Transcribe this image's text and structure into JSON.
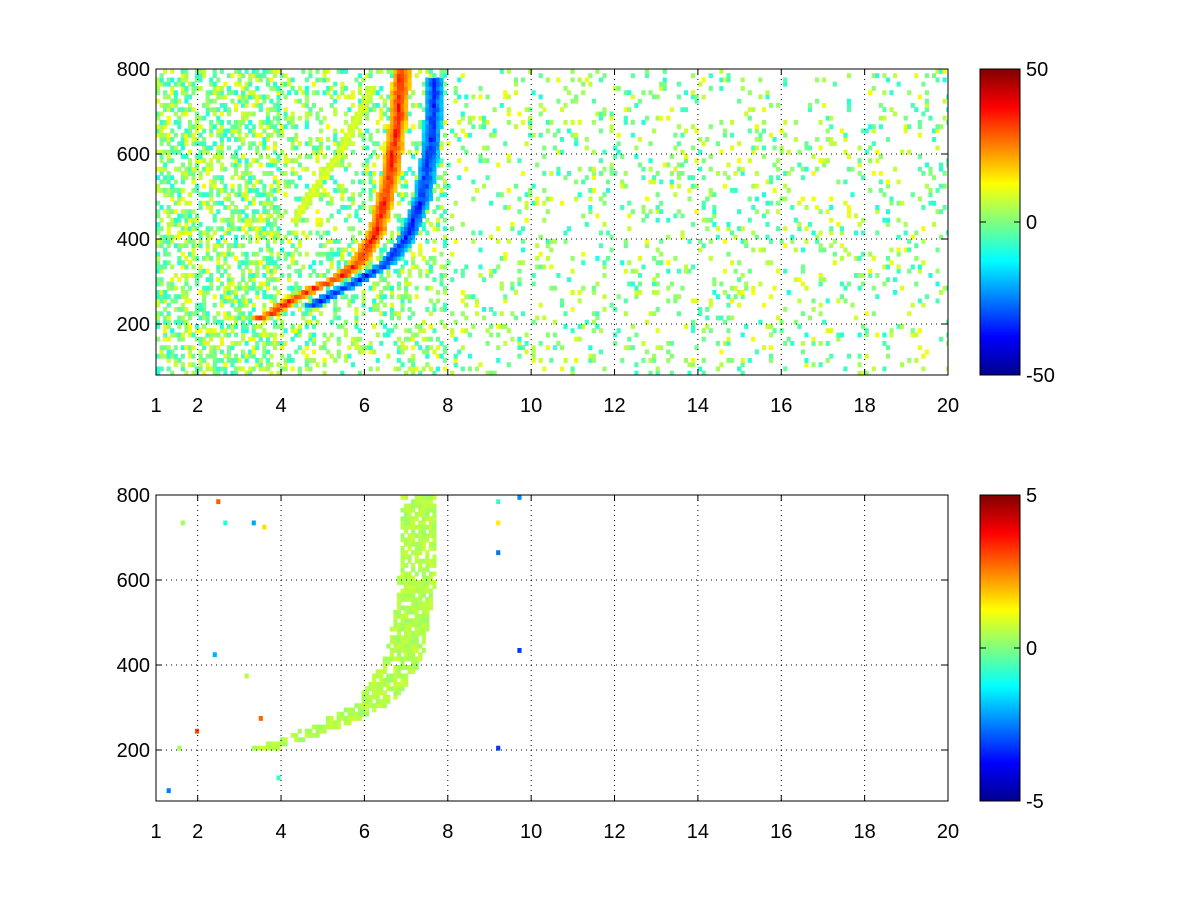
{
  "chart_data": [
    {
      "type": "heatmap",
      "title": "",
      "xlabel": "",
      "ylabel": "",
      "xlim": [
        1,
        20
      ],
      "ylim": [
        80,
        800
      ],
      "xticks": [
        1,
        2,
        4,
        6,
        8,
        10,
        12,
        14,
        16,
        18,
        20
      ],
      "yticks": [
        200,
        400,
        600,
        800
      ],
      "grid": true,
      "colormap": "jet",
      "clim": [
        -50,
        50
      ],
      "colorbar_ticks": [
        -50,
        0,
        50
      ],
      "features": [
        {
          "kind": "positive_ridge",
          "value": 40,
          "points": [
            [
              3.3,
              210
            ],
            [
              3.7,
              220
            ],
            [
              4.2,
              255
            ],
            [
              4.8,
              285
            ],
            [
              5.4,
              310
            ],
            [
              5.9,
              350
            ],
            [
              6.3,
              420
            ],
            [
              6.6,
              540
            ],
            [
              6.8,
              680
            ],
            [
              6.9,
              800
            ]
          ]
        },
        {
          "kind": "negative_ridge",
          "value": -40,
          "points": [
            [
              4.7,
              240
            ],
            [
              5.2,
              270
            ],
            [
              5.8,
              300
            ],
            [
              6.5,
              340
            ],
            [
              7.0,
              400
            ],
            [
              7.4,
              500
            ],
            [
              7.6,
              620
            ],
            [
              7.7,
              780
            ]
          ]
        },
        {
          "kind": "faint_positive_ridge",
          "value": 12,
          "points": [
            [
              4.3,
              440
            ],
            [
              4.8,
              520
            ],
            [
              5.4,
              600
            ],
            [
              5.8,
              680
            ],
            [
              6.2,
              760
            ]
          ]
        }
      ]
    },
    {
      "type": "heatmap",
      "title": "",
      "xlabel": "",
      "ylabel": "",
      "xlim": [
        1,
        20
      ],
      "ylim": [
        80,
        800
      ],
      "xticks": [
        1,
        2,
        4,
        6,
        8,
        10,
        12,
        14,
        16,
        18,
        20
      ],
      "yticks": [
        200,
        400,
        600,
        800
      ],
      "grid": true,
      "colormap": "jet",
      "clim": [
        -5,
        5
      ],
      "colorbar_ticks": [
        -5,
        0,
        5
      ],
      "features": [
        {
          "kind": "band",
          "value": 0.5,
          "from": [
            [
              3.3,
              205
            ],
            [
              4.2,
              235
            ],
            [
              5.0,
              270
            ],
            [
              5.8,
              310
            ],
            [
              6.5,
              420
            ],
            [
              6.8,
              560
            ],
            [
              6.9,
              800
            ]
          ],
          "to": [
            [
              3.8,
              200
            ],
            [
              4.8,
              230
            ],
            [
              5.8,
              270
            ],
            [
              6.8,
              320
            ],
            [
              7.4,
              420
            ],
            [
              7.7,
              600
            ],
            [
              7.7,
              800
            ]
          ]
        }
      ]
    }
  ]
}
